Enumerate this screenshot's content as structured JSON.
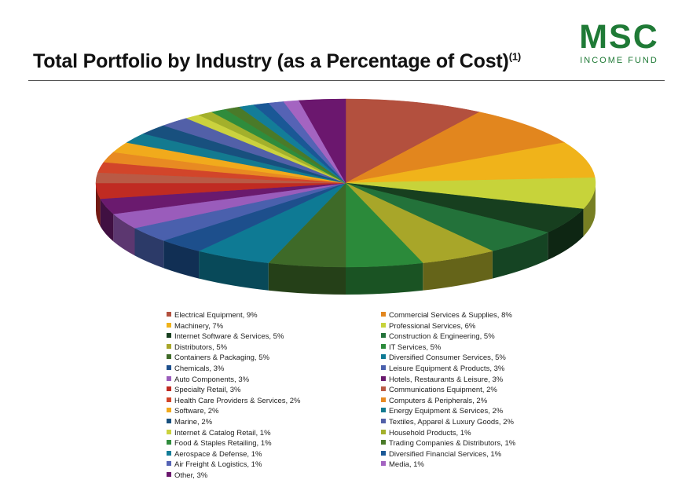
{
  "header": {
    "title": "Total Portfolio by Industry (as a Percentage of Cost)",
    "title_sup": "(1)",
    "logo_main": "MSC",
    "logo_sub": "INCOME FUND"
  },
  "chart_data": {
    "type": "pie",
    "title": "Total Portfolio by Industry (as a Percentage of Cost)",
    "legend_position": "bottom",
    "slices": [
      {
        "label": "Electrical Equipment, 9%",
        "value": 9,
        "color": "#b3503e"
      },
      {
        "label": "Commercial Services & Supplies, 8%",
        "value": 8,
        "color": "#e2861e"
      },
      {
        "label": "Machinery, 7%",
        "value": 7,
        "color": "#f0b31a"
      },
      {
        "label": "Professional Services, 6%",
        "value": 6,
        "color": "#c7d33a"
      },
      {
        "label": "Internet Software & Services, 5%",
        "value": 5,
        "color": "#173f1f"
      },
      {
        "label": "Construction & Engineering, 5%",
        "value": 5,
        "color": "#23723a"
      },
      {
        "label": "Distributors, 5%",
        "value": 5,
        "color": "#a8a629"
      },
      {
        "label": "IT Services, 5%",
        "value": 5,
        "color": "#2b8a3a"
      },
      {
        "label": "Containers & Packaging, 5%",
        "value": 5,
        "color": "#3e6a28"
      },
      {
        "label": "Diversified Consumer Services, 5%",
        "value": 5,
        "color": "#0e7a94"
      },
      {
        "label": "Chemicals, 3%",
        "value": 3,
        "color": "#1d4f8c"
      },
      {
        "label": "Leisure Equipment & Products, 3%",
        "value": 3,
        "color": "#4a60ad"
      },
      {
        "label": "Auto Components, 3%",
        "value": 3,
        "color": "#9a5cbb"
      },
      {
        "label": "Hotels, Restaurants & Leisure, 3%",
        "value": 3,
        "color": "#6a1a6e"
      },
      {
        "label": "Specialty Retail, 3%",
        "value": 3,
        "color": "#c02b22"
      },
      {
        "label": "Communications Equipment, 2%",
        "value": 2,
        "color": "#b95a45"
      },
      {
        "label": "Health Care Providers & Services, 2%",
        "value": 2,
        "color": "#d2452a"
      },
      {
        "label": "Computers & Peripherals, 2%",
        "value": 2,
        "color": "#e88a22"
      },
      {
        "label": "Software, 2%",
        "value": 2,
        "color": "#f1aa1c"
      },
      {
        "label": "Energy Equipment & Services, 2%",
        "value": 2,
        "color": "#137a90"
      },
      {
        "label": "Marine, 2%",
        "value": 2,
        "color": "#18507e"
      },
      {
        "label": "Textiles, Apparel & Luxury Goods, 2%",
        "value": 2,
        "color": "#5260a8"
      },
      {
        "label": "Internet & Catalog Retail, 1%",
        "value": 1,
        "color": "#cbd23e"
      },
      {
        "label": "Household Products, 1%",
        "value": 1,
        "color": "#a3b02b"
      },
      {
        "label": "Food & Staples Retailing, 1%",
        "value": 1,
        "color": "#2f8c3c"
      },
      {
        "label": "Trading Companies & Distributors, 1%",
        "value": 1,
        "color": "#4a7a29"
      },
      {
        "label": "Aerospace & Defense, 1%",
        "value": 1,
        "color": "#137d98"
      },
      {
        "label": "Diversified Financial Services, 1%",
        "value": 1,
        "color": "#1a5896"
      },
      {
        "label": "Air Freight & Logistics, 1%",
        "value": 1,
        "color": "#5563b5"
      },
      {
        "label": "Media, 1%",
        "value": 1,
        "color": "#a464c1"
      },
      {
        "label": "Other, 3%",
        "value": 3,
        "color": "#6b176e"
      }
    ]
  }
}
